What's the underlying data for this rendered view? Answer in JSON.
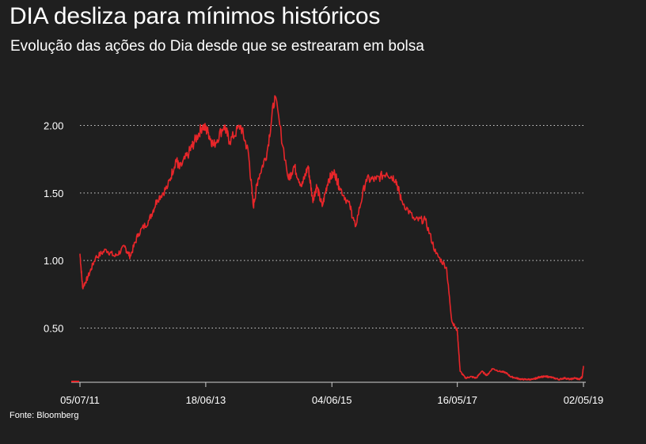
{
  "title": "DIA desliza para mínimos históricos",
  "subtitle": "Evolução das ações do Dia desde que se estrearam em bolsa",
  "source": "Fonte: Bloomberg",
  "colors": {
    "background": "#1f1f1f",
    "line": "#e8262a",
    "text": "#ffffff",
    "grid": "#cfcfcf"
  },
  "chart_data": {
    "type": "line",
    "ylim": [
      0.1,
      2.25
    ],
    "yticks": [
      {
        "value": 0.5,
        "label": "0.50"
      },
      {
        "value": 1.0,
        "label": "1.00"
      },
      {
        "value": 1.5,
        "label": "1.50"
      },
      {
        "value": 2.0,
        "label": "2.00"
      }
    ],
    "xlim": [
      "2011-07-05",
      "2019-05-02"
    ],
    "xticks": [
      {
        "date": "2011-07-05",
        "label": "05/07/11"
      },
      {
        "date": "2013-06-18",
        "label": "18/06/13"
      },
      {
        "date": "2015-06-04",
        "label": "04/06/15"
      },
      {
        "date": "2017-05-16",
        "label": "16/05/17"
      },
      {
        "date": "2019-05-02",
        "label": "02/05/19"
      }
    ],
    "grid": "horizontal-dotted",
    "series": [
      {
        "x": [
          "2011-07-05",
          "2011-07-20",
          "2011-08-20",
          "2011-10-01",
          "2011-12-01",
          "2012-01-20",
          "2012-03-15",
          "2012-04-15",
          "2012-06-01",
          "2012-08-01",
          "2012-09-15",
          "2012-11-15",
          "2013-01-01",
          "2013-01-20",
          "2013-03-15",
          "2013-04-15",
          "2013-06-01",
          "2013-07-01",
          "2013-08-01",
          "2013-10-01",
          "2013-11-01",
          "2014-01-01",
          "2014-02-15",
          "2014-03-15",
          "2014-04-10",
          "2014-06-01",
          "2014-07-15",
          "2014-10-01",
          "2014-11-01",
          "2014-12-15",
          "2015-01-20",
          "2015-02-15",
          "2015-03-10",
          "2015-04-10",
          "2015-05-15",
          "2015-06-20",
          "2015-07-15",
          "2015-09-15",
          "2015-10-15",
          "2015-12-15",
          "2016-02-10",
          "2016-04-10",
          "2016-06-01",
          "2016-07-01",
          "2016-09-15",
          "2016-11-15",
          "2017-01-15",
          "2017-03-15",
          "2017-04-15",
          "2017-05-16",
          "2017-06-01",
          "2017-07-01",
          "2017-08-01",
          "2017-09-01",
          "2017-10-01",
          "2017-11-01",
          "2017-12-01",
          "2018-01-10",
          "2018-02-15",
          "2018-03-15",
          "2018-04-15",
          "2018-05-15",
          "2018-06-15",
          "2018-07-20",
          "2018-08-10",
          "2018-09-01",
          "2018-10-01",
          "2018-10-15",
          "2018-11-15",
          "2018-12-15",
          "2019-01-15",
          "2019-02-15",
          "2019-03-15",
          "2019-04-10",
          "2019-04-25",
          "2019-05-02"
        ],
        "values": [
          1.05,
          0.8,
          0.88,
          1.02,
          1.08,
          1.03,
          1.1,
          1.03,
          1.2,
          1.3,
          1.45,
          1.55,
          1.75,
          1.68,
          1.8,
          1.88,
          2.0,
          1.95,
          1.85,
          2.0,
          1.88,
          2.0,
          1.8,
          1.4,
          1.6,
          1.8,
          2.22,
          1.6,
          1.7,
          1.55,
          1.7,
          1.45,
          1.55,
          1.4,
          1.6,
          1.65,
          1.55,
          1.4,
          1.25,
          1.6,
          1.6,
          1.65,
          1.6,
          1.45,
          1.3,
          1.3,
          1.05,
          0.95,
          0.55,
          0.48,
          0.18,
          0.13,
          0.14,
          0.13,
          0.18,
          0.15,
          0.2,
          0.18,
          0.17,
          0.14,
          0.13,
          0.12,
          0.12,
          0.12,
          0.13,
          0.14,
          0.14,
          0.14,
          0.13,
          0.12,
          0.13,
          0.12,
          0.13,
          0.12,
          0.14,
          0.22
        ]
      }
    ]
  }
}
